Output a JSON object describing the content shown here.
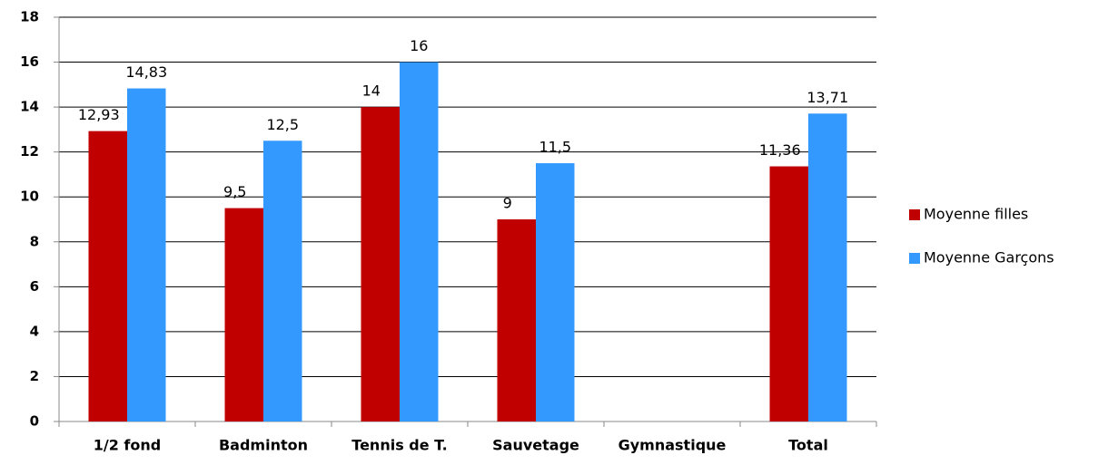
{
  "chart_data": {
    "type": "bar",
    "categories": [
      "1/2 fond",
      "Badminton",
      "Tennis de T.",
      "Sauvetage",
      "Gymnastique",
      "Total"
    ],
    "series": [
      {
        "name": "Moyenne filles",
        "color": "#c00000",
        "values": [
          12.93,
          9.5,
          14,
          9,
          null,
          11.36
        ],
        "value_labels": [
          "12,93",
          "9,5",
          "14",
          "9",
          null,
          "11,36"
        ]
      },
      {
        "name": "Moyenne Garçons",
        "color": "#3399ff",
        "values": [
          14.83,
          12.5,
          16,
          11.5,
          null,
          13.71
        ],
        "value_labels": [
          "14,83",
          "12,5",
          "16",
          "11,5",
          null,
          "13,71"
        ]
      }
    ],
    "ylim": [
      0,
      18
    ],
    "yticks": [
      0,
      2,
      4,
      6,
      8,
      10,
      12,
      14,
      16,
      18
    ],
    "grid": true,
    "legend": "right"
  }
}
